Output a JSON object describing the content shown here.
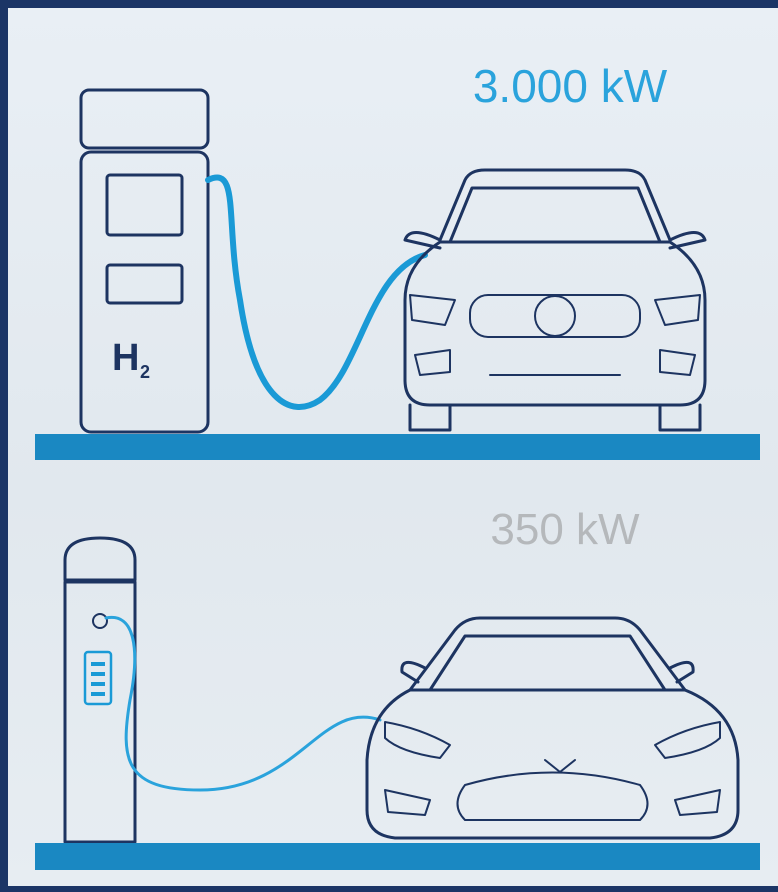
{
  "top_panel": {
    "power": "3.000 kW",
    "station_logo": {
      "letter": "H",
      "subscript": "2"
    }
  },
  "bottom_panel": {
    "power": "350 kW"
  }
}
